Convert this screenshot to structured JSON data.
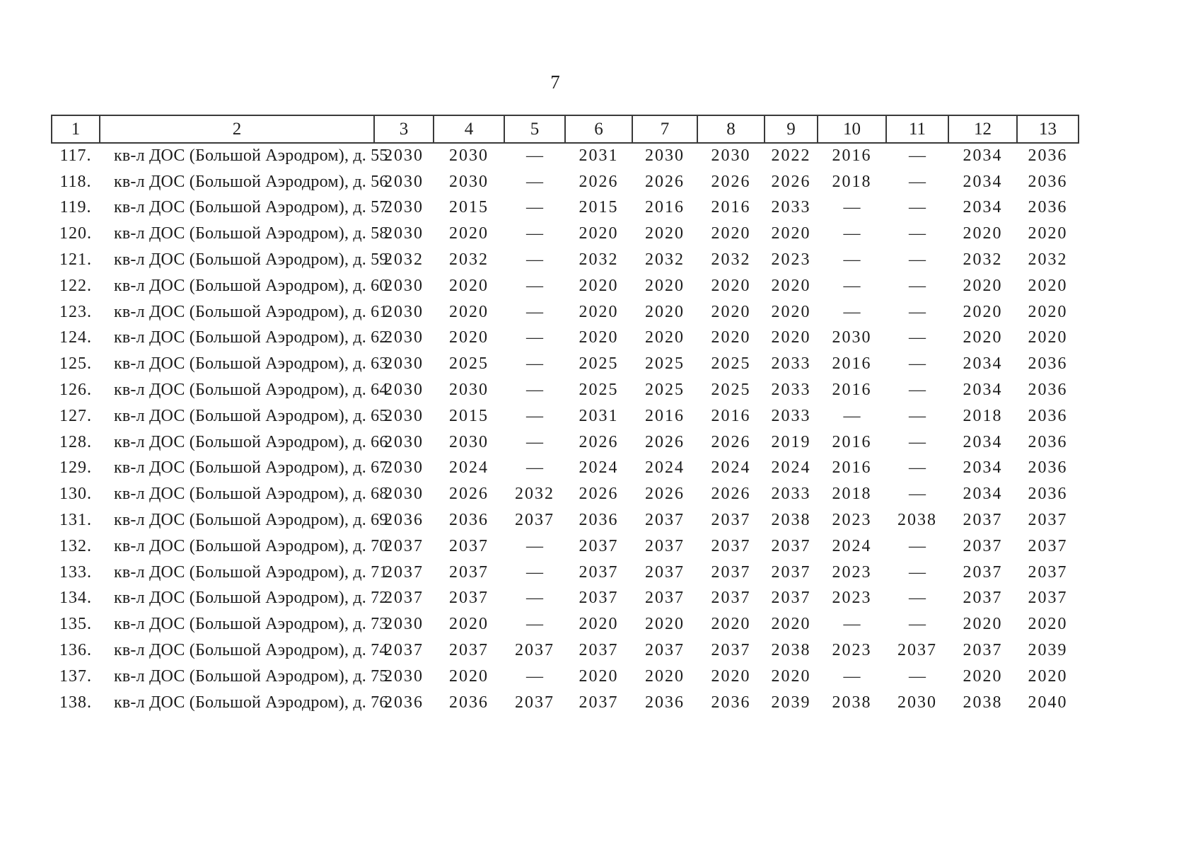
{
  "page": {
    "number": "7"
  },
  "table": {
    "columns": [
      "1",
      "2",
      "3",
      "4",
      "5",
      "6",
      "7",
      "8",
      "9",
      "10",
      "11",
      "12",
      "13"
    ],
    "dash": "—",
    "rows": [
      {
        "num": "117.",
        "name": "кв-л ДОС (Большой Аэродром), д. 55",
        "values": [
          "2030",
          "2030",
          "—",
          "2031",
          "2030",
          "2030",
          "2022",
          "2016",
          "—",
          "2034",
          "2036"
        ]
      },
      {
        "num": "118.",
        "name": "кв-л ДОС (Большой Аэродром), д. 56",
        "values": [
          "2030",
          "2030",
          "—",
          "2026",
          "2026",
          "2026",
          "2026",
          "2018",
          "—",
          "2034",
          "2036"
        ]
      },
      {
        "num": "119.",
        "name": "кв-л ДОС (Большой Аэродром), д. 57",
        "values": [
          "2030",
          "2015",
          "—",
          "2015",
          "2016",
          "2016",
          "2033",
          "—",
          "—",
          "2034",
          "2036"
        ]
      },
      {
        "num": "120.",
        "name": "кв-л ДОС (Большой Аэродром), д. 58",
        "values": [
          "2030",
          "2020",
          "—",
          "2020",
          "2020",
          "2020",
          "2020",
          "—",
          "—",
          "2020",
          "2020"
        ]
      },
      {
        "num": "121.",
        "name": "кв-л ДОС (Большой Аэродром), д. 59",
        "values": [
          "2032",
          "2032",
          "—",
          "2032",
          "2032",
          "2032",
          "2023",
          "—",
          "—",
          "2032",
          "2032"
        ]
      },
      {
        "num": "122.",
        "name": "кв-л ДОС (Большой Аэродром), д. 60",
        "values": [
          "2030",
          "2020",
          "—",
          "2020",
          "2020",
          "2020",
          "2020",
          "—",
          "—",
          "2020",
          "2020"
        ]
      },
      {
        "num": "123.",
        "name": "кв-л ДОС (Большой Аэродром), д. 61",
        "values": [
          "2030",
          "2020",
          "—",
          "2020",
          "2020",
          "2020",
          "2020",
          "—",
          "—",
          "2020",
          "2020"
        ]
      },
      {
        "num": "124.",
        "name": "кв-л ДОС (Большой Аэродром), д. 62",
        "values": [
          "2030",
          "2020",
          "—",
          "2020",
          "2020",
          "2020",
          "2020",
          "2030",
          "—",
          "2020",
          "2020"
        ]
      },
      {
        "num": "125.",
        "name": "кв-л ДОС (Большой Аэродром), д. 63",
        "values": [
          "2030",
          "2025",
          "—",
          "2025",
          "2025",
          "2025",
          "2033",
          "2016",
          "—",
          "2034",
          "2036"
        ]
      },
      {
        "num": "126.",
        "name": "кв-л ДОС (Большой Аэродром), д. 64",
        "values": [
          "2030",
          "2030",
          "—",
          "2025",
          "2025",
          "2025",
          "2033",
          "2016",
          "—",
          "2034",
          "2036"
        ]
      },
      {
        "num": "127.",
        "name": "кв-л ДОС (Большой Аэродром), д. 65",
        "values": [
          "2030",
          "2015",
          "—",
          "2031",
          "2016",
          "2016",
          "2033",
          "—",
          "—",
          "2018",
          "2036"
        ]
      },
      {
        "num": "128.",
        "name": "кв-л ДОС (Большой Аэродром), д. 66",
        "values": [
          "2030",
          "2030",
          "—",
          "2026",
          "2026",
          "2026",
          "2019",
          "2016",
          "—",
          "2034",
          "2036"
        ]
      },
      {
        "num": "129.",
        "name": "кв-л ДОС (Большой Аэродром), д. 67",
        "values": [
          "2030",
          "2024",
          "—",
          "2024",
          "2024",
          "2024",
          "2024",
          "2016",
          "—",
          "2034",
          "2036"
        ]
      },
      {
        "num": "130.",
        "name": "кв-л ДОС (Большой Аэродром), д. 68",
        "values": [
          "2030",
          "2026",
          "2032",
          "2026",
          "2026",
          "2026",
          "2033",
          "2018",
          "—",
          "2034",
          "2036"
        ]
      },
      {
        "num": "131.",
        "name": "кв-л ДОС (Большой Аэродром), д. 69",
        "values": [
          "2036",
          "2036",
          "2037",
          "2036",
          "2037",
          "2037",
          "2038",
          "2023",
          "2038",
          "2037",
          "2037"
        ]
      },
      {
        "num": "132.",
        "name": "кв-л ДОС (Большой Аэродром), д. 70",
        "values": [
          "2037",
          "2037",
          "—",
          "2037",
          "2037",
          "2037",
          "2037",
          "2024",
          "—",
          "2037",
          "2037"
        ]
      },
      {
        "num": "133.",
        "name": "кв-л ДОС (Большой Аэродром), д. 71",
        "values": [
          "2037",
          "2037",
          "—",
          "2037",
          "2037",
          "2037",
          "2037",
          "2023",
          "—",
          "2037",
          "2037"
        ]
      },
      {
        "num": "134.",
        "name": "кв-л ДОС (Большой Аэродром), д. 72",
        "values": [
          "2037",
          "2037",
          "—",
          "2037",
          "2037",
          "2037",
          "2037",
          "2023",
          "—",
          "2037",
          "2037"
        ]
      },
      {
        "num": "135.",
        "name": "кв-л ДОС (Большой Аэродром), д. 73",
        "values": [
          "2030",
          "2020",
          "—",
          "2020",
          "2020",
          "2020",
          "2020",
          "—",
          "—",
          "2020",
          "2020"
        ]
      },
      {
        "num": "136.",
        "name": "кв-л ДОС (Большой Аэродром), д. 74",
        "values": [
          "2037",
          "2037",
          "2037",
          "2037",
          "2037",
          "2037",
          "2038",
          "2023",
          "2037",
          "2037",
          "2039"
        ]
      },
      {
        "num": "137.",
        "name": "кв-л ДОС (Большой Аэродром), д. 75",
        "values": [
          "2030",
          "2020",
          "—",
          "2020",
          "2020",
          "2020",
          "2020",
          "—",
          "—",
          "2020",
          "2020"
        ]
      },
      {
        "num": "138.",
        "name": "кв-л ДОС (Большой Аэродром), д. 76",
        "values": [
          "2036",
          "2036",
          "2037",
          "2037",
          "2036",
          "2036",
          "2039",
          "2038",
          "2030",
          "2038",
          "2040"
        ]
      }
    ]
  }
}
